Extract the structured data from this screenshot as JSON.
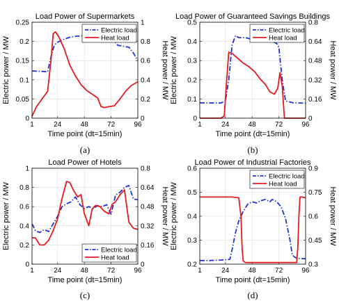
{
  "chart_data": [
    {
      "type": "line",
      "title": "Load Power of Supermarkets",
      "caption": "(a)",
      "xlabel": "Time point (dt=15min)",
      "ylabel": "Electric power / MW",
      "y2label": "Heat power / MW",
      "xlim": [
        1,
        96
      ],
      "ylim": [
        0,
        0.25
      ],
      "y2lim": [
        0,
        1
      ],
      "xticks": [
        "1",
        "24",
        "48",
        "72",
        "96"
      ],
      "yticks": [
        "0",
        "0.05",
        "0.1",
        "0.15",
        "0.2",
        "0.25"
      ],
      "y2ticks": [
        "0",
        "0.2",
        "0.4",
        "0.6",
        "0.8",
        "1"
      ],
      "grid": true,
      "legend": "top-right",
      "series": [
        {
          "name": "Electric load",
          "axis": "left",
          "color": "#1f33d6",
          "style": "dashdot",
          "x": [
            1,
            10,
            15,
            18,
            21,
            24,
            30,
            36,
            42,
            48,
            54,
            58,
            62,
            66,
            72,
            78,
            84,
            88,
            92,
            96
          ],
          "values": [
            0.123,
            0.122,
            0.121,
            0.16,
            0.19,
            0.198,
            0.206,
            0.212,
            0.214,
            0.215,
            0.22,
            0.225,
            0.222,
            0.219,
            0.21,
            0.19,
            0.187,
            0.185,
            0.17,
            0.15
          ]
        },
        {
          "name": "Heat load",
          "axis": "right",
          "color": "#e41a1c",
          "style": "solid",
          "x": [
            1,
            5,
            10,
            15,
            18,
            20,
            22,
            25,
            30,
            35,
            40,
            45,
            50,
            55,
            60,
            63,
            66,
            70,
            75,
            80,
            85,
            90,
            96
          ],
          "values": [
            0.02,
            0.12,
            0.2,
            0.28,
            0.6,
            0.88,
            0.9,
            0.85,
            0.72,
            0.55,
            0.44,
            0.35,
            0.29,
            0.25,
            0.21,
            0.12,
            0.11,
            0.12,
            0.13,
            0.2,
            0.28,
            0.34,
            0.38
          ]
        }
      ]
    },
    {
      "type": "line",
      "title": "Load Power of Guaranteed Savings Buildings",
      "caption": "(b)",
      "xlabel": "Time point (dt=15min)",
      "ylabel": "Electric power / MW",
      "y2label": "Heat power / MW",
      "xlim": [
        1,
        96
      ],
      "ylim": [
        0,
        0.5
      ],
      "y2lim": [
        0,
        0.8
      ],
      "xticks": [
        "1",
        "24",
        "48",
        "72",
        "96"
      ],
      "yticks": [
        "0",
        "0.1",
        "0.2",
        "0.3",
        "0.4",
        "0.5"
      ],
      "y2ticks": [
        "0",
        "0.16",
        "0.32",
        "0.48",
        "0.64",
        "0.8"
      ],
      "grid": true,
      "legend": "top-right",
      "series": [
        {
          "name": "Electric load",
          "axis": "left",
          "color": "#1f33d6",
          "style": "dashdot",
          "x": [
            1,
            10,
            20,
            24,
            27,
            30,
            33,
            36,
            42,
            48,
            54,
            60,
            66,
            70,
            72,
            75,
            78,
            85,
            96
          ],
          "values": [
            0.08,
            0.079,
            0.079,
            0.09,
            0.2,
            0.38,
            0.43,
            0.42,
            0.42,
            0.41,
            0.41,
            0.41,
            0.4,
            0.39,
            0.37,
            0.2,
            0.09,
            0.08,
            0.078
          ]
        },
        {
          "name": "Heat load",
          "axis": "right",
          "color": "#e41a1c",
          "style": "solid",
          "x": [
            1,
            10,
            20,
            23,
            25,
            27,
            30,
            35,
            40,
            45,
            50,
            55,
            60,
            64,
            68,
            71,
            73,
            75,
            77,
            80,
            90,
            96
          ],
          "values": [
            0.0,
            0.0,
            0.0,
            0.02,
            0.3,
            0.55,
            0.54,
            0.5,
            0.46,
            0.43,
            0.39,
            0.33,
            0.28,
            0.22,
            0.2,
            0.25,
            0.38,
            0.27,
            0.0,
            0.0,
            0.0,
            0.0
          ]
        }
      ]
    },
    {
      "type": "line",
      "title": "Load Power of Hotels",
      "caption": "(c)",
      "xlabel": "Time point (dt=15min)",
      "ylabel": "Electric power / MW",
      "y2label": "Heat power / MW",
      "xlim": [
        1,
        96
      ],
      "ylim": [
        0,
        1
      ],
      "y2lim": [
        0,
        0.8
      ],
      "xticks": [
        "1",
        "24",
        "48",
        "72",
        "96"
      ],
      "yticks": [
        "0",
        "0.2",
        "0.4",
        "0.6",
        "0.8",
        "1"
      ],
      "y2ticks": [
        "0",
        "0.16",
        "0.32",
        "0.48",
        "0.64",
        "0.8"
      ],
      "grid": true,
      "legend": "bottom-right",
      "series": [
        {
          "name": "Electric load",
          "axis": "left",
          "color": "#1f33d6",
          "style": "dashdot",
          "x": [
            1,
            4,
            8,
            12,
            16,
            20,
            24,
            28,
            32,
            36,
            40,
            44,
            48,
            52,
            56,
            60,
            64,
            68,
            72,
            76,
            80,
            84,
            88,
            92,
            96
          ],
          "values": [
            0.42,
            0.35,
            0.33,
            0.36,
            0.34,
            0.42,
            0.5,
            0.6,
            0.63,
            0.65,
            0.7,
            0.62,
            0.58,
            0.6,
            0.58,
            0.61,
            0.6,
            0.62,
            0.52,
            0.72,
            0.75,
            0.8,
            0.82,
            0.68,
            0.67
          ]
        },
        {
          "name": "Heat load",
          "axis": "right",
          "color": "#e41a1c",
          "style": "solid",
          "x": [
            1,
            4,
            8,
            12,
            16,
            20,
            24,
            28,
            32,
            35,
            38,
            42,
            45,
            48,
            52,
            55,
            58,
            62,
            66,
            70,
            73,
            76,
            80,
            84,
            88,
            92,
            96
          ],
          "values": [
            0.22,
            0.22,
            0.16,
            0.16,
            0.2,
            0.28,
            0.38,
            0.55,
            0.69,
            0.68,
            0.62,
            0.56,
            0.58,
            0.42,
            0.32,
            0.46,
            0.49,
            0.48,
            0.44,
            0.42,
            0.5,
            0.52,
            0.58,
            0.62,
            0.35,
            0.3,
            0.29
          ]
        }
      ]
    },
    {
      "type": "line",
      "title": "Load Power of Industrial Factories",
      "caption": "(d)",
      "xlabel": "Time point (dt=15min)",
      "ylabel": "Electric power / MW",
      "y2label": "Heat power / MW",
      "xlim": [
        1,
        96
      ],
      "ylim": [
        0.2,
        0.6
      ],
      "y2lim": [
        0.3,
        0.9
      ],
      "xticks": [
        "1",
        "24",
        "48",
        "72",
        "96"
      ],
      "yticks": [
        "0.2",
        "0.3",
        "0.4",
        "0.5",
        "0.6"
      ],
      "y2ticks": [
        "0.3",
        "0.45",
        "0.6",
        "0.75",
        "0.9"
      ],
      "grid": true,
      "legend": "top-right",
      "series": [
        {
          "name": "Electric load",
          "axis": "left",
          "color": "#1f33d6",
          "style": "dashdot",
          "x": [
            1,
            10,
            20,
            28,
            30,
            33,
            36,
            40,
            44,
            48,
            52,
            56,
            60,
            64,
            66,
            70,
            74,
            78,
            82,
            84,
            86,
            88,
            96
          ],
          "values": [
            0.215,
            0.215,
            0.217,
            0.22,
            0.26,
            0.33,
            0.38,
            0.42,
            0.45,
            0.46,
            0.455,
            0.465,
            0.47,
            0.46,
            0.47,
            0.46,
            0.44,
            0.39,
            0.3,
            0.24,
            0.23,
            0.225,
            0.222
          ]
        },
        {
          "name": "Heat load",
          "axis": "right",
          "color": "#e41a1c",
          "style": "solid",
          "x": [
            1,
            10,
            20,
            30,
            36,
            38,
            39,
            40,
            42,
            50,
            60,
            70,
            80,
            86,
            88,
            89,
            90,
            91,
            93,
            96
          ],
          "values": [
            0.72,
            0.72,
            0.72,
            0.72,
            0.715,
            0.6,
            0.4,
            0.32,
            0.31,
            0.31,
            0.31,
            0.31,
            0.31,
            0.31,
            0.31,
            0.4,
            0.6,
            0.72,
            0.72,
            0.715
          ]
        }
      ]
    }
  ]
}
